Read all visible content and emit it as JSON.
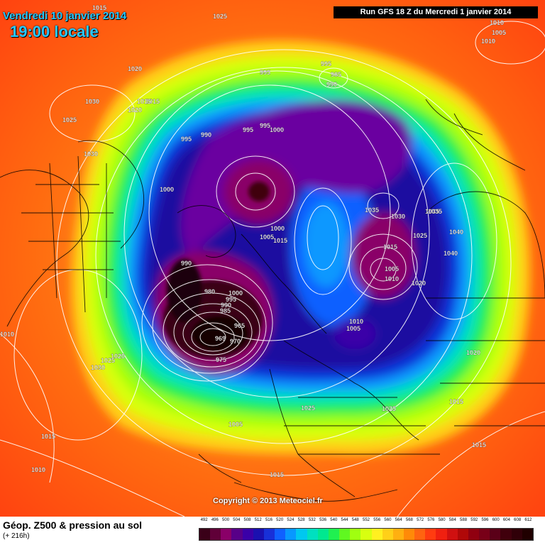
{
  "header": {
    "date": "Vendredi 10 janvier 2014",
    "time": "19:00 locale",
    "run": "Run GFS 18 Z du Mercredi 1 janvier 2014"
  },
  "copyright": "Copyright © 2013 Meteociel.fr",
  "footer": {
    "title": "Géop. Z500 & pression au sol",
    "subtitle": "(+ 216h)"
  },
  "legend": {
    "values": [
      "492",
      "496",
      "500",
      "504",
      "508",
      "512",
      "516",
      "520",
      "524",
      "528",
      "532",
      "536",
      "540",
      "544",
      "548",
      "552",
      "556",
      "560",
      "564",
      "568",
      "572",
      "576",
      "580",
      "584",
      "588",
      "592",
      "596",
      "600",
      "604",
      "608",
      "612"
    ],
    "colors": [
      "#3a0018",
      "#600038",
      "#8a0068",
      "#580088",
      "#3a00a8",
      "#1a10b0",
      "#1830d8",
      "#1060ff",
      "#0898ff",
      "#00c8f0",
      "#00e0c0",
      "#00e890",
      "#20f050",
      "#60f820",
      "#a0ff10",
      "#d8ff10",
      "#fff020",
      "#ffd018",
      "#ffb010",
      "#ff8a08",
      "#ff6410",
      "#ff3c10",
      "#f02010",
      "#d01010",
      "#b00808",
      "#900010",
      "#780018",
      "#5a0018",
      "#40000c",
      "#300008",
      "#200000"
    ]
  },
  "pressure_labels": [
    {
      "text": "1015"
    },
    {
      "text": "1025"
    },
    {
      "text": "1020"
    },
    {
      "text": "1015"
    },
    {
      "text": "1020"
    },
    {
      "text": "1030"
    },
    {
      "text": "1025"
    },
    {
      "text": "1030"
    },
    {
      "text": "995"
    },
    {
      "text": "995"
    },
    {
      "text": "985"
    },
    {
      "text": "990"
    },
    {
      "text": "995"
    },
    {
      "text": "990"
    },
    {
      "text": "995"
    },
    {
      "text": "1000"
    },
    {
      "text": "995"
    },
    {
      "text": "1000"
    },
    {
      "text": "1010"
    },
    {
      "text": "1005"
    },
    {
      "text": "1010"
    },
    {
      "text": "1015"
    },
    {
      "text": "1035"
    },
    {
      "text": "1035"
    },
    {
      "text": "1030"
    },
    {
      "text": "1035"
    },
    {
      "text": "1040"
    },
    {
      "text": "1025"
    },
    {
      "text": "1015"
    },
    {
      "text": "1040"
    },
    {
      "text": "1005"
    },
    {
      "text": "1010"
    },
    {
      "text": "1020"
    },
    {
      "text": "990"
    },
    {
      "text": "980"
    },
    {
      "text": "1000"
    },
    {
      "text": "995"
    },
    {
      "text": "990"
    },
    {
      "text": "985"
    },
    {
      "text": "965"
    },
    {
      "text": "969"
    },
    {
      "text": "970"
    },
    {
      "text": "975"
    },
    {
      "text": "1010"
    },
    {
      "text": "1005"
    },
    {
      "text": "1015"
    },
    {
      "text": "1020"
    },
    {
      "text": "1025"
    },
    {
      "text": "1030"
    },
    {
      "text": "1025"
    },
    {
      "text": "1025"
    },
    {
      "text": "1020"
    },
    {
      "text": "1015"
    },
    {
      "text": "1005"
    },
    {
      "text": "1015"
    },
    {
      "text": "1015"
    },
    {
      "text": "1010"
    },
    {
      "text": "1000"
    },
    {
      "text": "1005"
    },
    {
      "text": "1010"
    },
    {
      "text": "1015"
    },
    {
      "text": "1015"
    }
  ]
}
